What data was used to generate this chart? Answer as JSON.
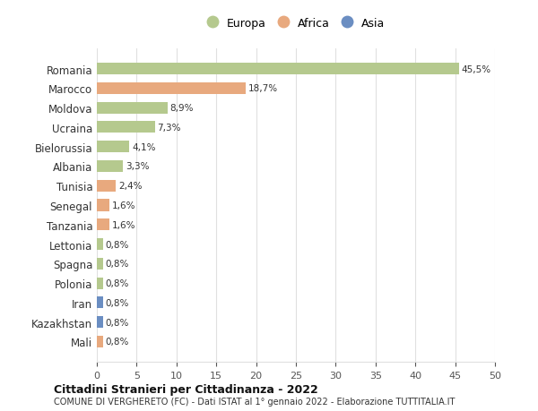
{
  "countries": [
    "Romania",
    "Marocco",
    "Moldova",
    "Ucraina",
    "Bielorussia",
    "Albania",
    "Tunisia",
    "Senegal",
    "Tanzania",
    "Lettonia",
    "Spagna",
    "Polonia",
    "Iran",
    "Kazakhstan",
    "Mali"
  ],
  "values": [
    45.5,
    18.7,
    8.9,
    7.3,
    4.1,
    3.3,
    2.4,
    1.6,
    1.6,
    0.8,
    0.8,
    0.8,
    0.8,
    0.8,
    0.8
  ],
  "labels": [
    "45,5%",
    "18,7%",
    "8,9%",
    "7,3%",
    "4,1%",
    "3,3%",
    "2,4%",
    "1,6%",
    "1,6%",
    "0,8%",
    "0,8%",
    "0,8%",
    "0,8%",
    "0,8%",
    "0,8%"
  ],
  "continents": [
    "Europa",
    "Africa",
    "Europa",
    "Europa",
    "Europa",
    "Europa",
    "Africa",
    "Africa",
    "Africa",
    "Europa",
    "Europa",
    "Europa",
    "Asia",
    "Asia",
    "Africa"
  ],
  "colors": {
    "Europa": "#b5c98e",
    "Africa": "#e8a97e",
    "Asia": "#6b8ec2"
  },
  "legend_items": [
    "Europa",
    "Africa",
    "Asia"
  ],
  "xlim": [
    0,
    50
  ],
  "xticks": [
    0,
    5,
    10,
    15,
    20,
    25,
    30,
    35,
    40,
    45,
    50
  ],
  "title_bold": "Cittadini Stranieri per Cittadinanza - 2022",
  "subtitle": "COMUNE DI VERGHERETO (FC) - Dati ISTAT al 1° gennaio 2022 - Elaborazione TUTTITALIA.IT",
  "background_color": "#ffffff",
  "grid_color": "#e0e0e0",
  "bar_height": 0.6
}
